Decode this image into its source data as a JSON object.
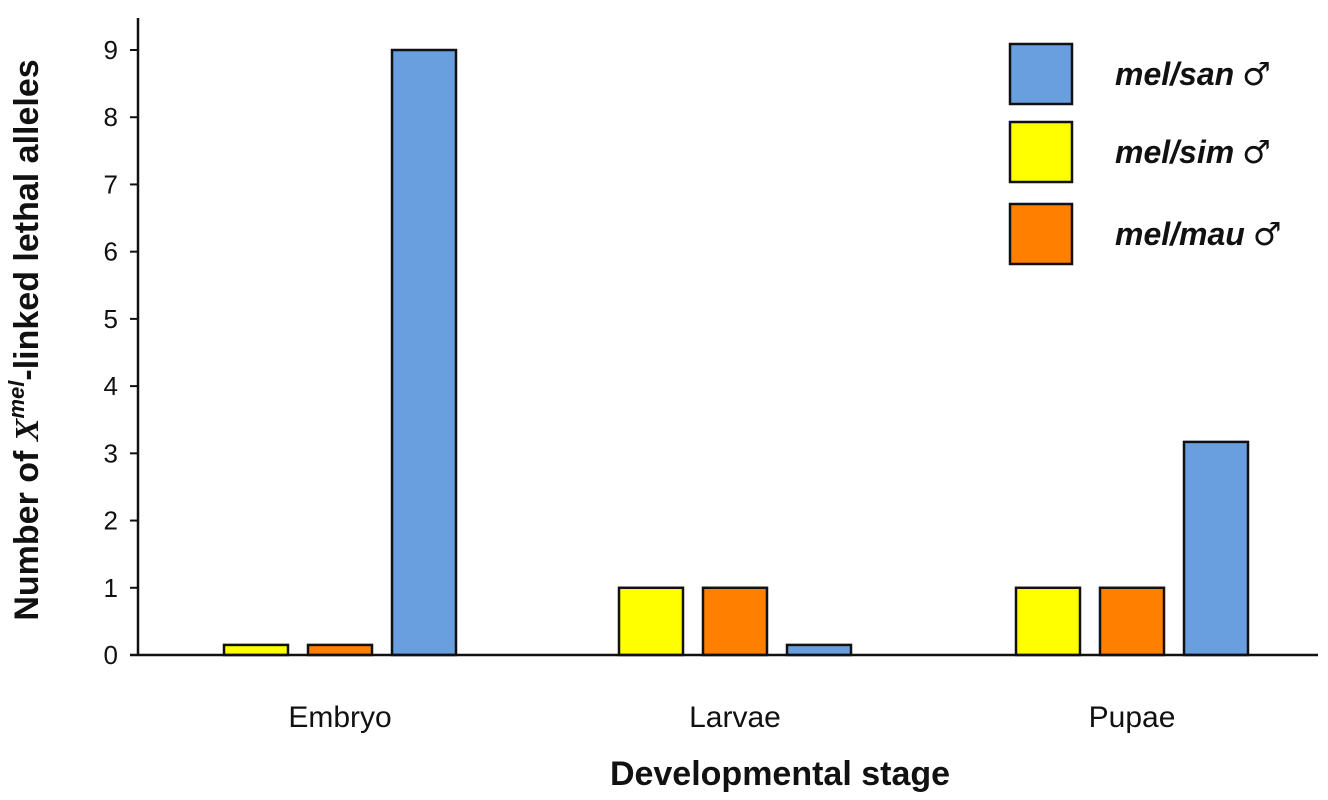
{
  "chart_data": {
    "type": "bar",
    "xlabel": "Developmental stage",
    "ylabel_prefix": "Number of ",
    "ylabel_var": "X",
    "ylabel_sup": "mel",
    "ylabel_suffix": "-linked lethal alleles",
    "categories": [
      "Embryo",
      "Larvae",
      "Pupae"
    ],
    "ylim": [
      0,
      9
    ],
    "yticks": [
      "0",
      "1",
      "2",
      "3",
      "4",
      "5",
      "6",
      "7",
      "8",
      "9"
    ],
    "grid": false,
    "legend_position": "top-right",
    "series": [
      {
        "name": "mel/sim",
        "symbol": "♂",
        "color": "#ffff00",
        "values": [
          0.15,
          1,
          1
        ]
      },
      {
        "name": "mel/mau",
        "symbol": "♂",
        "color": "#ff7f00",
        "values": [
          0.15,
          1,
          1
        ]
      },
      {
        "name": "mel/san",
        "symbol": "♂",
        "color": "#6a9fdf",
        "values": [
          9,
          0.15,
          3.17
        ]
      }
    ],
    "legend_order": [
      2,
      0,
      1
    ]
  }
}
